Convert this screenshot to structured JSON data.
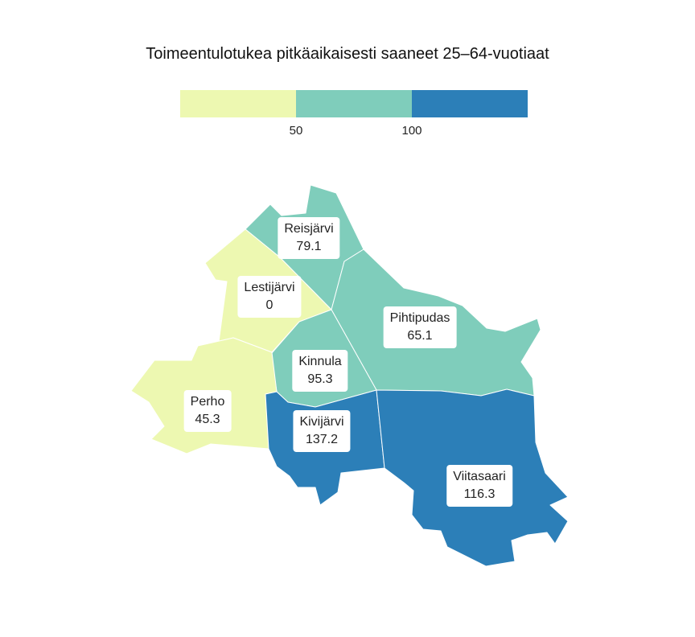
{
  "title": "Toimeentulotukea pitkäaikaisesti saaneet 25–64-vuotiaat",
  "legend": {
    "classes": [
      {
        "color": "#edf8b1"
      },
      {
        "color": "#7fcdbb"
      },
      {
        "color": "#2c7fb8"
      }
    ],
    "breaks": [
      "50",
      "100"
    ]
  },
  "regions": [
    {
      "name": "Reisjärvi",
      "value": "79.1",
      "color": "#7fcdbb"
    },
    {
      "name": "Lestijärvi",
      "value": "0",
      "color": "#edf8b1"
    },
    {
      "name": "Pihtipudas",
      "value": "65.1",
      "color": "#7fcdbb"
    },
    {
      "name": "Kinnula",
      "value": "95.3",
      "color": "#7fcdbb"
    },
    {
      "name": "Perho",
      "value": "45.3",
      "color": "#edf8b1"
    },
    {
      "name": "Kivijärvi",
      "value": "137.2",
      "color": "#2c7fb8"
    },
    {
      "name": "Viitasaari",
      "value": "116.3",
      "color": "#2c7fb8"
    }
  ]
}
